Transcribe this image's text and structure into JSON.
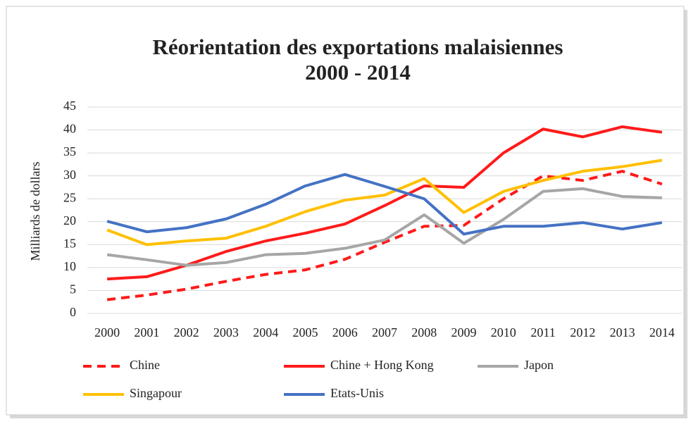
{
  "chart_data": {
    "type": "line",
    "title": "Réorientation des exportations malaisiennes",
    "subtitle": "2000 - 2014",
    "y_label": "Milliards de dollars",
    "categories": [
      "2000",
      "2001",
      "2002",
      "2003",
      "2004",
      "2005",
      "2006",
      "2007",
      "2008",
      "2009",
      "2010",
      "2011",
      "2012",
      "2013",
      "2014"
    ],
    "series": [
      {
        "name": "Chine",
        "color": "#ff1a1a",
        "line_style": "dashed",
        "values": [
          3,
          4,
          5.3,
          7,
          8.5,
          9.5,
          11.8,
          15.5,
          19,
          19.2,
          25,
          30,
          29,
          31,
          28.2
        ]
      },
      {
        "name": "Chine + Hong Kong",
        "color": "#ff1a1a",
        "line_style": "solid",
        "values": [
          7.5,
          8,
          10.5,
          13.5,
          15.8,
          17.5,
          19.5,
          23.5,
          27.8,
          27.5,
          35,
          40.2,
          38.5,
          40.7,
          39.5
        ]
      },
      {
        "name": "Japon",
        "color": "#a6a6a6",
        "line_style": "solid",
        "values": [
          12.8,
          11.7,
          10.5,
          11.1,
          12.8,
          13.1,
          14.2,
          16,
          21.5,
          15.3,
          20.5,
          26.6,
          27.2,
          25.5,
          25.2
        ]
      },
      {
        "name": "Singapour",
        "color": "#ffc000",
        "line_style": "solid",
        "values": [
          18.2,
          15,
          15.8,
          16.4,
          19,
          22.2,
          24.7,
          25.8,
          29.4,
          22,
          26.6,
          29,
          31,
          32,
          33.4
        ]
      },
      {
        "name": "Etats-Unis",
        "color": "#4472c4",
        "line_style": "solid",
        "values": [
          20.1,
          17.8,
          18.7,
          20.6,
          23.8,
          27.8,
          30.3,
          27.7,
          25,
          17.3,
          19,
          19,
          19.8,
          18.4,
          19.8
        ]
      }
    ],
    "ylim": [
      0,
      45
    ],
    "yticks": [
      0,
      5,
      10,
      15,
      20,
      25,
      30,
      35,
      40,
      45
    ],
    "grid": true,
    "legend": "bottom"
  }
}
